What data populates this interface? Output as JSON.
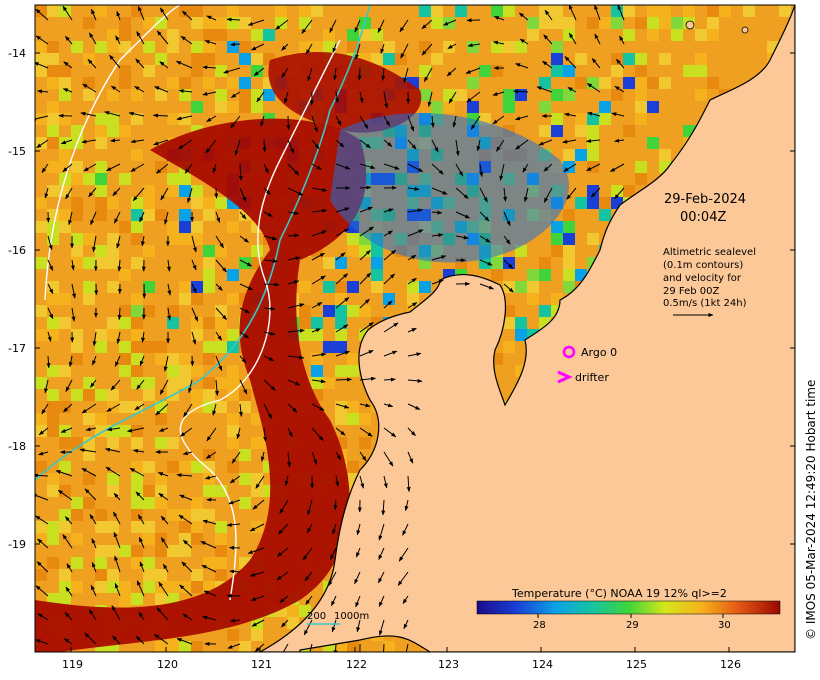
{
  "date_line1": "29-Feb-2024",
  "date_line2": "00:04Z",
  "altimetry": {
    "line1": "Altimetric sealevel",
    "line2": "(0.1m contours)",
    "line3": "and velocity for",
    "line4": "29 Feb 00Z",
    "line5": "0.5m/s (1kt 24h)"
  },
  "legend": {
    "argo": "Argo 0",
    "drifter": "drifter"
  },
  "depth_legend": {
    "d200": "200",
    "d1000": "1000m"
  },
  "credit": "© IMOS 05-Mar-2024 12:49:20 Hobart time",
  "colorbar": {
    "title": "Temperature (°C) NOAA 19 12% ql>=2",
    "ticks": [
      "28",
      "29",
      "30"
    ],
    "range": [
      27.3,
      30.6
    ]
  },
  "axes": {
    "lon_ticks": [
      "119",
      "120",
      "121",
      "122",
      "123",
      "124",
      "125",
      "126"
    ],
    "lat_ticks": [
      "-14",
      "-15",
      "-16",
      "-17",
      "-18",
      "-19"
    ]
  },
  "colors": {
    "land": "#fcc898",
    "warm": "#a50a00",
    "cool": "#2e4fd0",
    "argo": "#ff00ff",
    "contour200": "#36c8c8",
    "contour1000": "#ffffff"
  }
}
